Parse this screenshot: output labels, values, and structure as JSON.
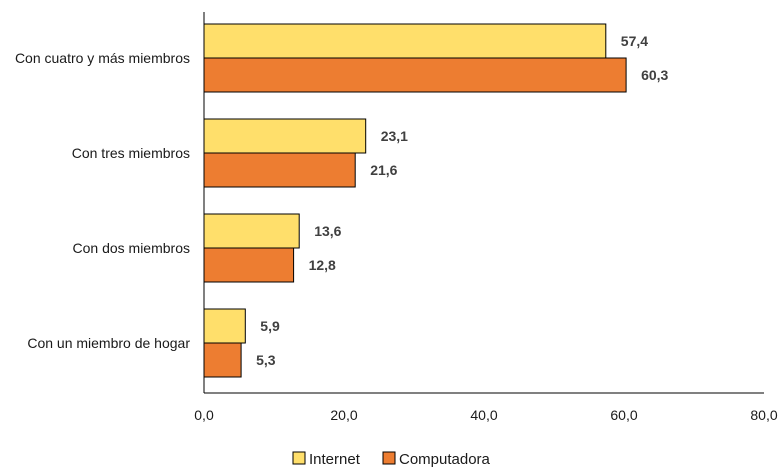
{
  "chart_data": {
    "type": "bar",
    "orientation": "horizontal",
    "categories": [
      "Con cuatro y más miembros",
      "Con tres miembros",
      "Con dos miembros",
      "Con un miembro de hogar"
    ],
    "series": [
      {
        "name": "Internet",
        "values": [
          57.4,
          23.1,
          13.6,
          5.9
        ],
        "labels": [
          "57,4",
          "23,1",
          "13,6",
          "5,9"
        ],
        "color": "#FFDF6B"
      },
      {
        "name": "Computadora",
        "values": [
          60.3,
          21.6,
          12.8,
          5.3
        ],
        "labels": [
          "60,3",
          "21,6",
          "12,8",
          "5,3"
        ],
        "color": "#ED7D31"
      }
    ],
    "xlim": [
      0,
      80
    ],
    "xticks": [
      0,
      20,
      40,
      60,
      80
    ],
    "xtick_labels": [
      "0,0",
      "20,0",
      "40,0",
      "60,0",
      "80,0"
    ],
    "grid": false,
    "legend_position": "bottom"
  }
}
